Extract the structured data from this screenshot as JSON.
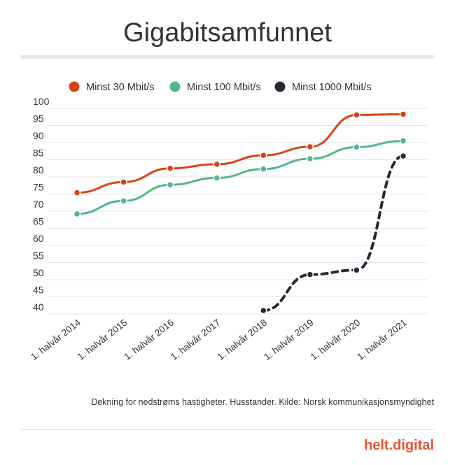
{
  "colors": {
    "min30": "#d84315",
    "min100": "#52b788",
    "min1000": "#262a36",
    "grid": "#e3e3e3",
    "brand": "#e8542a"
  },
  "chart_data": {
    "type": "line",
    "title": "Gigabitsamfunnet",
    "xlabel": "",
    "ylabel": "",
    "ylim": [
      40,
      100
    ],
    "yticks": [
      100,
      95,
      90,
      85,
      80,
      75,
      70,
      65,
      60,
      55,
      50,
      45,
      40
    ],
    "grid": true,
    "legend_position": "top",
    "categories": [
      "1. halvår 2014",
      "1. halvår 2015",
      "1. halvår 2016",
      "1. halvår 2017",
      "1. halvår 2018",
      "1. halvår 2019",
      "1. halvår 2020",
      "1. halvår 2021"
    ],
    "series": [
      {
        "name": "Minst 30 Mbit/s",
        "color": "#d84315",
        "dashed": false,
        "values": [
          75.4,
          78.5,
          82.5,
          83.7,
          86.3,
          88.8,
          98.1,
          98.3
        ]
      },
      {
        "name": "Minst 100 Mbit/s",
        "color": "#52b788",
        "dashed": false,
        "values": [
          69.2,
          73.0,
          77.7,
          79.7,
          82.3,
          85.3,
          88.7,
          90.5
        ]
      },
      {
        "name": "Minst 1000 Mbit/s",
        "color": "#262a36",
        "dashed": true,
        "values": [
          null,
          null,
          null,
          null,
          41.0,
          51.5,
          52.8,
          86.1
        ]
      }
    ],
    "note": "Dekning for nedstrøms hastigheter. Husstander. Kilde: Norsk kommunikasjonsmyndighet"
  },
  "branding": {
    "logo_text": "helt.digital"
  }
}
